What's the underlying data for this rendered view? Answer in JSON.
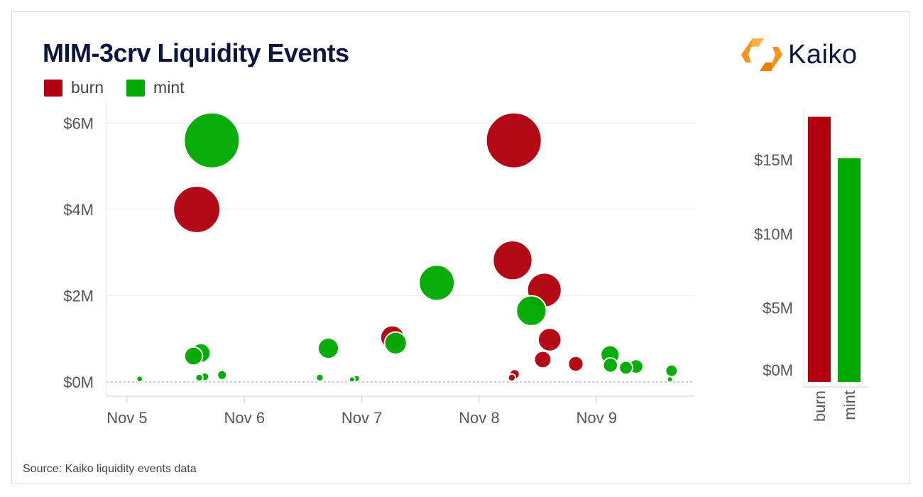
{
  "title": "MIM-3crv Liquidity Events",
  "logo": {
    "text": "Kaiko"
  },
  "source": "Source: Kaiko liquidity events data",
  "colors": {
    "burn": "#b1000e",
    "mint": "#00aa00"
  },
  "legend": [
    {
      "name": "burn",
      "color": "#b1000e"
    },
    {
      "name": "mint",
      "color": "#00aa00"
    }
  ],
  "chart_data": [
    {
      "type": "scatter",
      "title": "",
      "x_axis": {
        "type": "date",
        "range": [
          "2021-11-04T19:48",
          "2021-11-09T20:00"
        ],
        "ticks": [
          "Nov 5",
          "Nov 6",
          "Nov 7",
          "Nov 8",
          "Nov 9"
        ]
      },
      "y_axis": {
        "range": [
          0,
          6.5
        ],
        "unit": "$M",
        "ticks": [
          "$0M",
          "$2M",
          "$4M",
          "$6M"
        ]
      },
      "grid": true,
      "bubble_size": "value",
      "series": [
        {
          "name": "burn",
          "color": "#b1000e",
          "points": [
            {
              "x": "2021-11-05T14:15",
              "y": 4.0
            },
            {
              "x": "2021-11-07T06:15",
              "y": 1.03
            },
            {
              "x": "2021-11-08T06:50",
              "y": 2.82
            },
            {
              "x": "2021-11-08T07:05",
              "y": 5.6
            },
            {
              "x": "2021-11-08T13:20",
              "y": 2.13
            },
            {
              "x": "2021-11-08T14:25",
              "y": 0.98
            },
            {
              "x": "2021-11-08T13:00",
              "y": 0.52
            },
            {
              "x": "2021-11-08T19:45",
              "y": 0.42
            },
            {
              "x": "2021-11-08T07:15",
              "y": 0.18
            },
            {
              "x": "2021-11-08T06:40",
              "y": 0.1
            }
          ]
        },
        {
          "name": "mint",
          "color": "#00aa00",
          "points": [
            {
              "x": "2021-11-05T17:20",
              "y": 5.6
            },
            {
              "x": "2021-11-07T15:20",
              "y": 2.3
            },
            {
              "x": "2021-11-08T10:40",
              "y": 1.65
            },
            {
              "x": "2021-11-06T17:10",
              "y": 0.78
            },
            {
              "x": "2021-11-07T06:55",
              "y": 0.9
            },
            {
              "x": "2021-11-05T13:35",
              "y": 0.6
            },
            {
              "x": "2021-11-05T15:05",
              "y": 0.67
            },
            {
              "x": "2021-11-09T02:45",
              "y": 0.63
            },
            {
              "x": "2021-11-09T02:50",
              "y": 0.39
            },
            {
              "x": "2021-11-09T06:00",
              "y": 0.33
            },
            {
              "x": "2021-11-09T08:05",
              "y": 0.36
            },
            {
              "x": "2021-11-09T15:20",
              "y": 0.26
            },
            {
              "x": "2021-11-05T19:25",
              "y": 0.16
            },
            {
              "x": "2021-11-05T15:55",
              "y": 0.12
            },
            {
              "x": "2021-11-05T14:45",
              "y": 0.1
            },
            {
              "x": "2021-11-06T15:25",
              "y": 0.1
            },
            {
              "x": "2021-11-06T22:55",
              "y": 0.08
            },
            {
              "x": "2021-11-05T02:35",
              "y": 0.07
            },
            {
              "x": "2021-11-06T22:00",
              "y": 0.06
            },
            {
              "x": "2021-11-09T15:00",
              "y": 0.06
            }
          ]
        }
      ]
    },
    {
      "type": "bar",
      "title": "",
      "categories": [
        "burn",
        "mint"
      ],
      "series": [
        {
          "values": [
            17.9,
            15.1
          ]
        }
      ],
      "colors": [
        "#b1000e",
        "#00aa00"
      ],
      "ylim": [
        0,
        18.5
      ],
      "y_ticks": [
        "$0M",
        "$5M",
        "$10M",
        "$15M"
      ],
      "grid": false
    }
  ]
}
